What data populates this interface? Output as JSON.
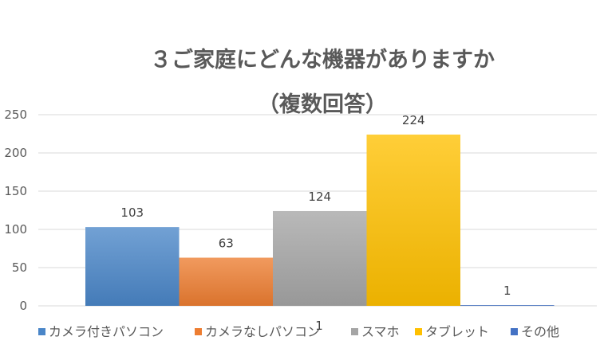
{
  "chart_data": {
    "type": "bar",
    "title": "３ご家庭にどんな機器がありますか",
    "subtitle": "（複数回答）",
    "xlabel": "",
    "ylabel": "",
    "ylim": [
      0,
      250
    ],
    "yticks": [
      0,
      50,
      100,
      150,
      200,
      250
    ],
    "yticks_text": [
      "0",
      "50",
      "100",
      "150",
      "200",
      "250"
    ],
    "grid": true,
    "legend_position": "bottom",
    "stray_label": "1",
    "series": [
      {
        "name": "カメラ付きパソコン",
        "values": [
          103
        ],
        "label": "103",
        "color": "#4a86c8"
      },
      {
        "name": "カメラなしパソコン",
        "values": [
          63
        ],
        "label": "63",
        "color": "#ed7d31"
      },
      {
        "name": "スマホ",
        "values": [
          124
        ],
        "label": "124",
        "color": "#a5a5a5"
      },
      {
        "name": "タブレット",
        "values": [
          224
        ],
        "label": "224",
        "color": "#ffc000"
      },
      {
        "name": "その他",
        "values": [
          1
        ],
        "label": "1",
        "color": "#4472c4"
      }
    ]
  }
}
